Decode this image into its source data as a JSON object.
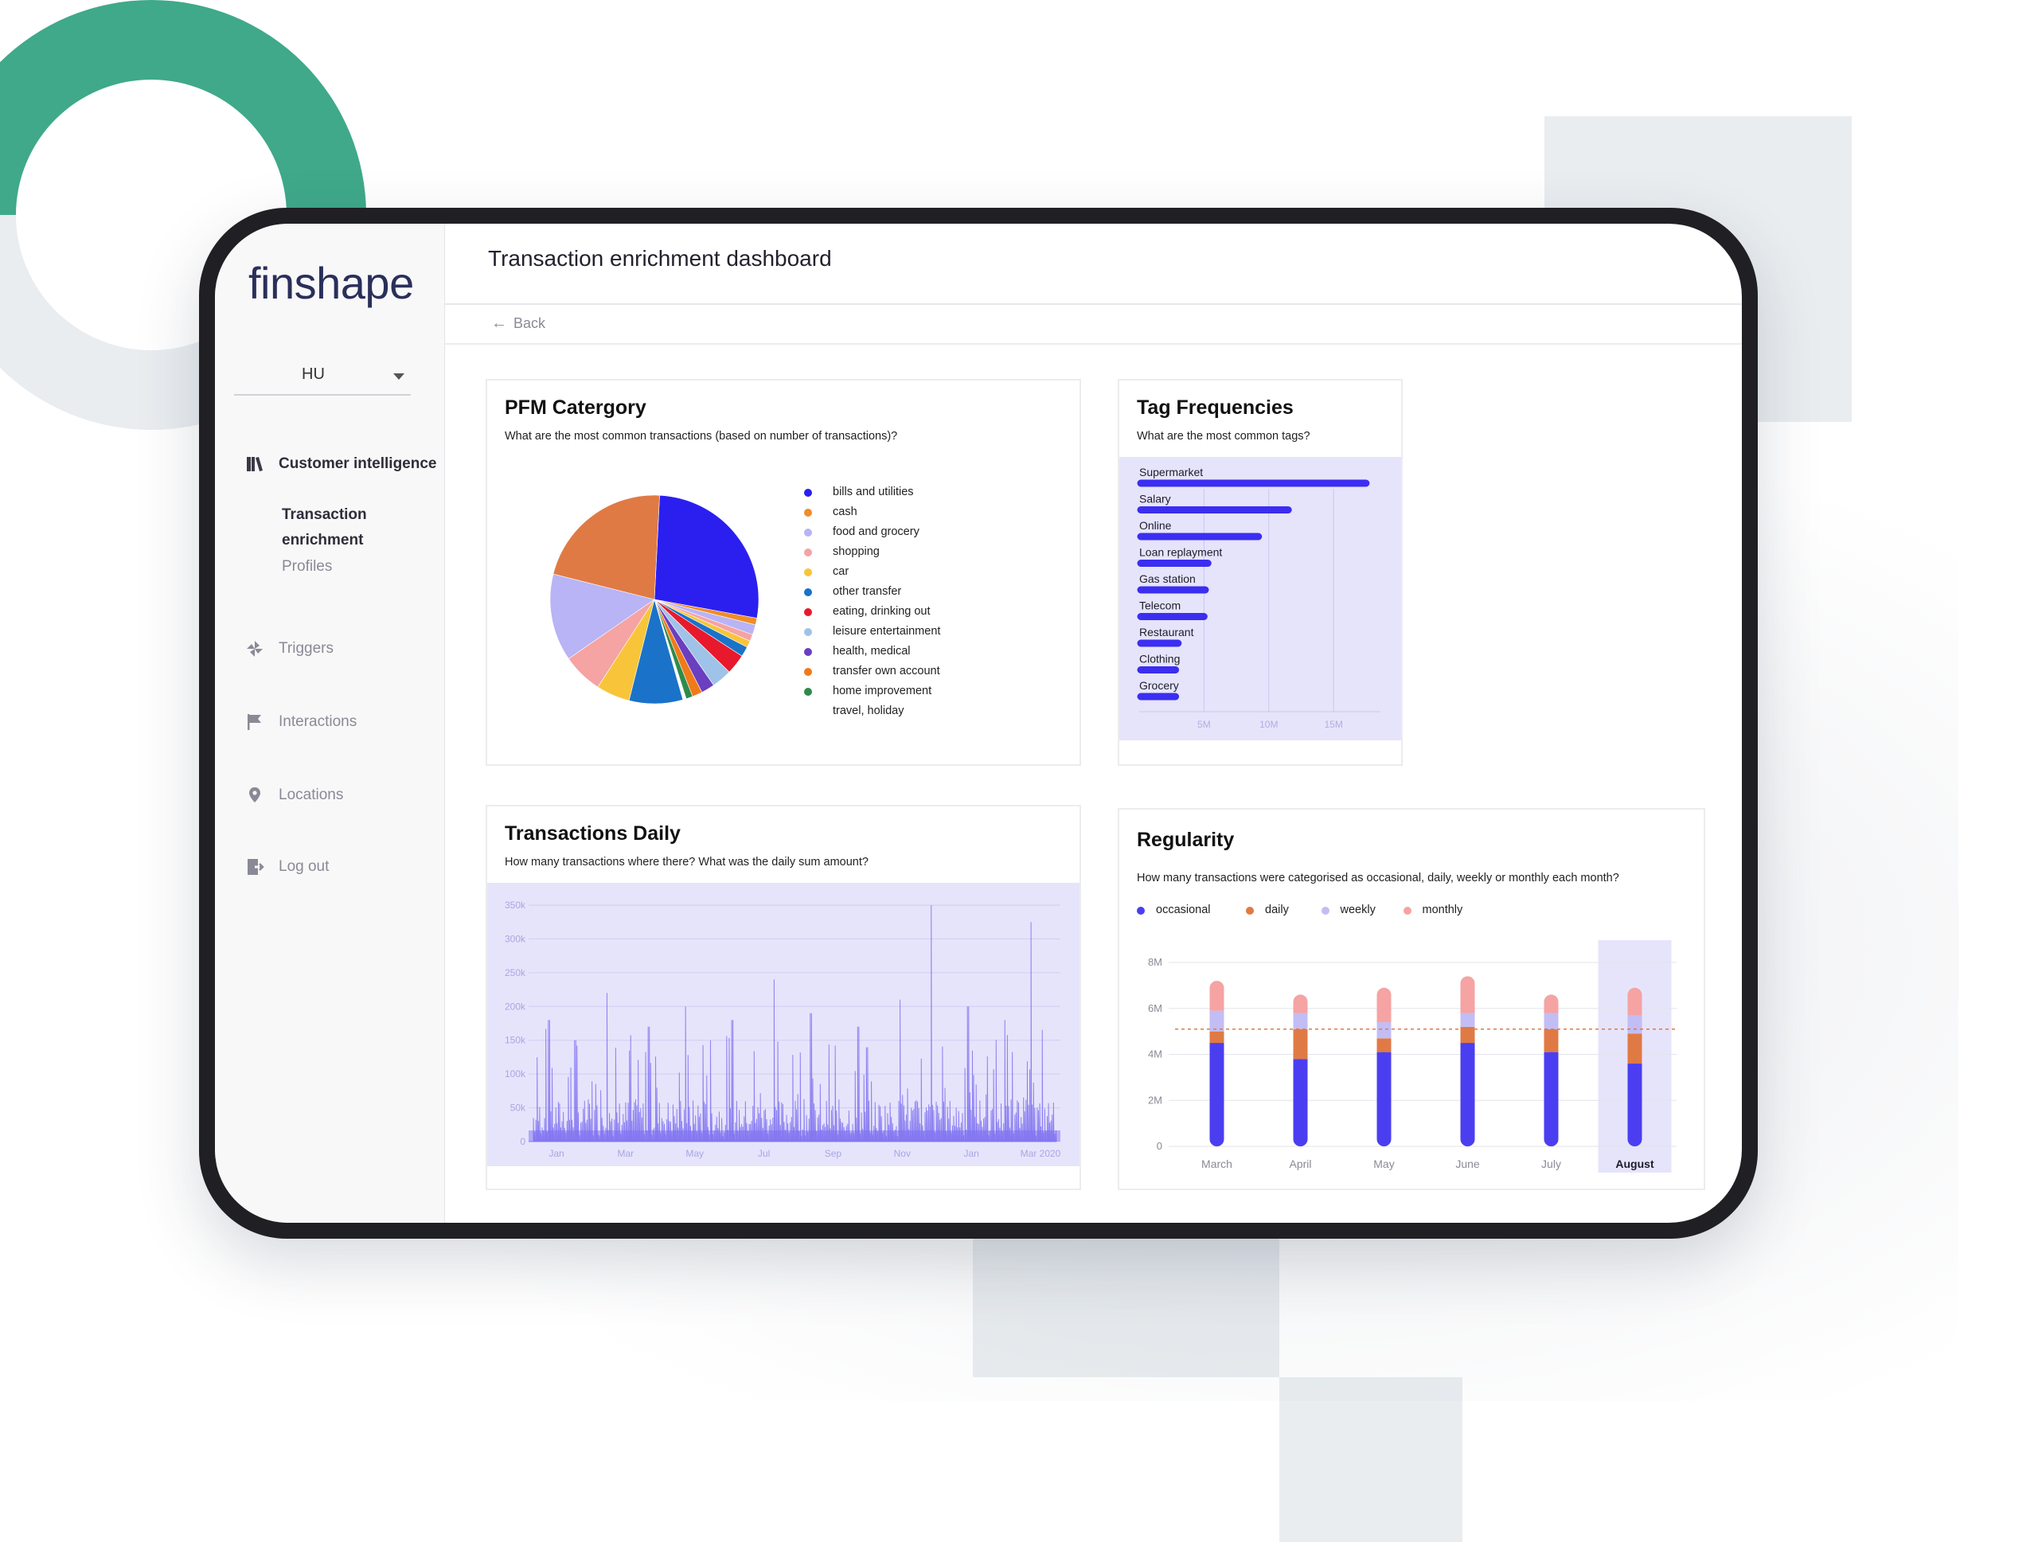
{
  "brand": {
    "logo_text": "finshape",
    "accent": "#3fa98a"
  },
  "sidebar": {
    "language": "HU",
    "items": [
      {
        "label": "Customer intelligence",
        "icon": "book-icon",
        "active": true
      },
      {
        "label": "Triggers",
        "icon": "pinwheel-icon"
      },
      {
        "label": "Interactions",
        "icon": "flag-icon"
      },
      {
        "label": "Locations",
        "icon": "pin-icon"
      },
      {
        "label": "Log out",
        "icon": "logout-icon"
      }
    ],
    "subitems": [
      {
        "label_line1": "Transaction",
        "label_line2": "enrichment",
        "active": true
      },
      {
        "label_line1": "Profiles",
        "label_line2": ""
      }
    ]
  },
  "header": {
    "title": "Transaction enrichment dashboard",
    "back_label": "Back"
  },
  "cards": {
    "pfm": {
      "title": "PFM Catergory",
      "subtitle": "What are the most common transactions (based on number of transactions)?"
    },
    "tags": {
      "title": "Tag Frequencies",
      "subtitle": "What are the most common tags?"
    },
    "daily": {
      "title": "Transactions Daily",
      "subtitle": "How many transactions where there? What was the daily sum amount?"
    },
    "regularity": {
      "title": "Regularity",
      "subtitle": "How many transactions were categorised as occasional, daily, weekly or monthly each month?"
    }
  },
  "chart_data": [
    {
      "type": "pie",
      "slices": [
        {
          "label": "bills and utilities",
          "value": 26,
          "color": "#2b1ff0"
        },
        {
          "label": "cash",
          "value": 1,
          "color": "#f08c2a"
        },
        {
          "label": "food and grocery",
          "value": 1.5,
          "color": "#b8b4f5"
        },
        {
          "label": "shopping",
          "value": 1,
          "color": "#f5a3a3"
        },
        {
          "label": "car",
          "value": 1,
          "color": "#f8c53a"
        },
        {
          "label": "other transfer",
          "value": 1.5,
          "color": "#1a73c9"
        },
        {
          "label": "eating, drinking out",
          "value": 3,
          "color": "#e8192c"
        },
        {
          "label": "leisure entertainment",
          "value": 3,
          "color": "#9fc3e8"
        },
        {
          "label": "health, medical",
          "value": 2,
          "color": "#6a3fc0"
        },
        {
          "label": "transfer own account",
          "value": 1.5,
          "color": "#f07a1a"
        },
        {
          "label": "home improvement",
          "value": 1,
          "color": "#2e8b4a"
        },
        {
          "label": "travel, holiday",
          "value": 0.5,
          "color": "#ffffff"
        }
      ],
      "remaining_slices": [
        {
          "value": 8,
          "color": "#1a73c9"
        },
        {
          "value": 5,
          "color": "#f8c53a"
        },
        {
          "value": 6,
          "color": "#f5a3a3"
        },
        {
          "value": 13,
          "color": "#b8b4f5"
        },
        {
          "value": 21,
          "color": "#e07a45"
        }
      ]
    },
    {
      "type": "bar",
      "orientation": "horizontal",
      "categories": [
        "Supermarket",
        "Salary",
        "Online",
        "Loan replayment",
        "Gas station",
        "Telecom",
        "Restaurant",
        "Clothing",
        "Grocery"
      ],
      "values": [
        17.5,
        11.5,
        9.2,
        5.3,
        5.1,
        5.0,
        3.0,
        2.8,
        2.8
      ],
      "xticks": [
        "5M",
        "10M",
        "15M"
      ],
      "xlim": [
        0,
        18
      ],
      "color": "#3b2ef0"
    },
    {
      "type": "area",
      "yticks": [
        "0",
        "50k",
        "100k",
        "150k",
        "200k",
        "250k",
        "300k",
        "350k"
      ],
      "ylim": [
        0,
        350000
      ],
      "xticks": [
        "Jan",
        "Mar",
        "May",
        "Jul",
        "Sep",
        "Nov",
        "Jan",
        "Mar 2020"
      ],
      "peaks": [
        {
          "x": 0.03,
          "y": 180000
        },
        {
          "x": 0.08,
          "y": 150000
        },
        {
          "x": 0.14,
          "y": 220000
        },
        {
          "x": 0.22,
          "y": 170000
        },
        {
          "x": 0.29,
          "y": 200000
        },
        {
          "x": 0.38,
          "y": 180000
        },
        {
          "x": 0.46,
          "y": 240000
        },
        {
          "x": 0.53,
          "y": 190000
        },
        {
          "x": 0.62,
          "y": 170000
        },
        {
          "x": 0.7,
          "y": 210000
        },
        {
          "x": 0.76,
          "y": 350000
        },
        {
          "x": 0.83,
          "y": 200000
        },
        {
          "x": 0.9,
          "y": 180000
        },
        {
          "x": 0.95,
          "y": 325000
        }
      ],
      "color": "#7b6ef0"
    },
    {
      "type": "bar",
      "stacked": true,
      "categories": [
        "March",
        "April",
        "May",
        "June",
        "July",
        "August"
      ],
      "highlight": "August",
      "series": [
        {
          "name": "occasional",
          "color": "#4b3ef0",
          "values": [
            4.5,
            3.8,
            4.1,
            4.5,
            4.1,
            3.6
          ]
        },
        {
          "name": "daily",
          "color": "#e07a45",
          "values": [
            0.5,
            1.3,
            0.6,
            0.7,
            1.0,
            1.3
          ]
        },
        {
          "name": "weekly",
          "color": "#c2bdf5",
          "values": [
            0.9,
            0.7,
            0.7,
            0.6,
            0.7,
            0.8
          ]
        },
        {
          "name": "monthly",
          "color": "#f5a3a3",
          "values": [
            1.3,
            0.8,
            1.5,
            1.6,
            0.8,
            1.2
          ]
        }
      ],
      "yticks": [
        "0",
        "2M",
        "4M",
        "6M",
        "8M"
      ],
      "ylim": [
        0,
        8
      ],
      "reference_line": 5.1
    }
  ]
}
